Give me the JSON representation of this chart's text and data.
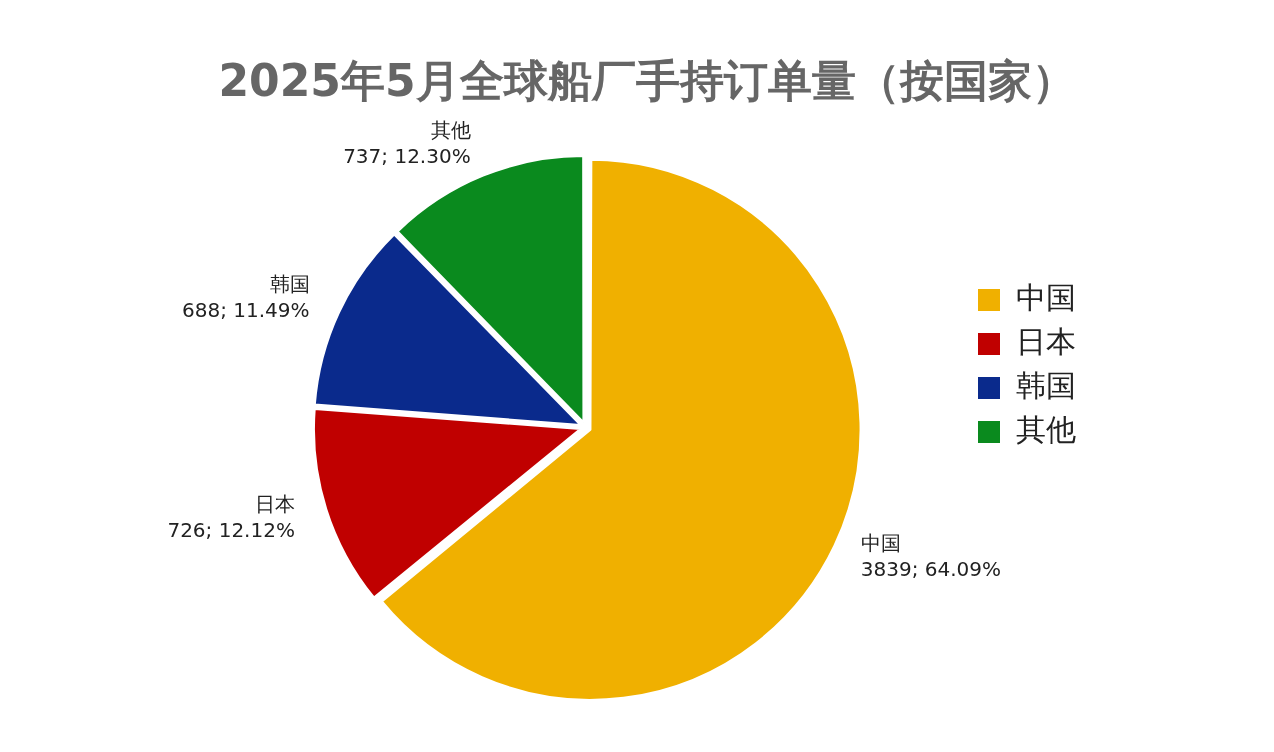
{
  "chart_data": {
    "type": "pie",
    "title": "2025年5月全球船厂手持订单量（按国家）",
    "categories": [
      "中国",
      "日本",
      "韩国",
      "其他"
    ],
    "values": [
      3839,
      726,
      688,
      737
    ],
    "value_labels": [
      "3839; 64.09%",
      "726; 12.12%",
      "688; 11.49%",
      "737; 12.30%"
    ],
    "colors": [
      "#f0b000",
      "#c00000",
      "#0a2a8c",
      "#0a8a1e"
    ],
    "legend": "right"
  }
}
